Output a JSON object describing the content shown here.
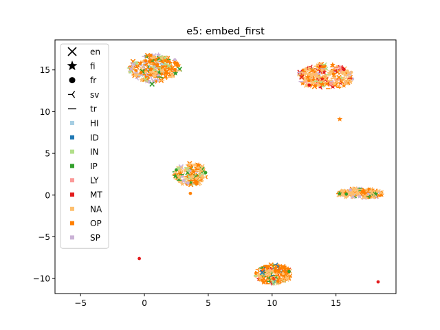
{
  "chart_data": {
    "type": "scatter",
    "title": "e5: embed_first",
    "xlabel": "",
    "ylabel": "",
    "xlim": [
      -7.0,
      19.7
    ],
    "ylim": [
      -11.8,
      18.6
    ],
    "xticks": [
      -5,
      0,
      5,
      10,
      15
    ],
    "yticks": [
      -10,
      -5,
      0,
      5,
      10,
      15
    ],
    "xtick_labels": [
      "−5",
      "0",
      "5",
      "10",
      "15"
    ],
    "ytick_labels": [
      "−10",
      "−5",
      "0",
      "5",
      "10",
      "15"
    ],
    "grid": false,
    "legend_position": "upper-left",
    "legend_markers": [
      {
        "name": "en",
        "marker": "x"
      },
      {
        "name": "fi",
        "marker": "star"
      },
      {
        "name": "fr",
        "marker": "circle"
      },
      {
        "name": "sv",
        "marker": "tri_left"
      },
      {
        "name": "tr",
        "marker": "hline"
      }
    ],
    "legend_classes": [
      {
        "name": "HI",
        "color": "#a6cee3"
      },
      {
        "name": "ID",
        "color": "#1f78b4"
      },
      {
        "name": "IN",
        "color": "#b2df8a"
      },
      {
        "name": "IP",
        "color": "#33a02c"
      },
      {
        "name": "LY",
        "color": "#fb9a99"
      },
      {
        "name": "MT",
        "color": "#e31a1c"
      },
      {
        "name": "NA",
        "color": "#fdbf6f"
      },
      {
        "name": "OP",
        "color": "#ff7f00"
      },
      {
        "name": "SP",
        "color": "#cab2d6"
      }
    ],
    "clusters": [
      {
        "cx": 0.8,
        "cy": 15.2,
        "rx": 2.0,
        "ry": 1.7,
        "n": 240,
        "mix": {
          "OP": 0.5,
          "NA": 0.18,
          "SP": 0.15,
          "IN": 0.07,
          "IP": 0.05,
          "HI": 0.05
        }
      },
      {
        "cx": 14.2,
        "cy": 14.2,
        "rx": 2.2,
        "ry": 1.5,
        "n": 240,
        "mix": {
          "NA": 0.45,
          "OP": 0.3,
          "MT": 0.12,
          "SP": 0.05,
          "IN": 0.04,
          "LY": 0.04
        }
      },
      {
        "cx": 3.6,
        "cy": 2.5,
        "rx": 1.3,
        "ry": 1.3,
        "n": 160,
        "mix": {
          "NA": 0.45,
          "OP": 0.3,
          "IN": 0.12,
          "IP": 0.08,
          "SP": 0.05
        }
      },
      {
        "cx": 16.9,
        "cy": 0.2,
        "rx": 1.8,
        "ry": 0.55,
        "n": 140,
        "mix": {
          "NA": 0.6,
          "OP": 0.28,
          "IP": 0.06,
          "SP": 0.06
        }
      },
      {
        "cx": 10.1,
        "cy": -9.5,
        "rx": 1.4,
        "ry": 1.2,
        "n": 180,
        "mix": {
          "OP": 0.48,
          "NA": 0.22,
          "IP": 0.12,
          "IN": 0.06,
          "ID": 0.06,
          "MT": 0.06
        }
      }
    ],
    "isolated_points": [
      {
        "x": -0.4,
        "y": -7.6,
        "class": "MT",
        "marker": "circle"
      },
      {
        "x": 18.3,
        "y": -10.4,
        "class": "MT",
        "marker": "circle"
      },
      {
        "x": 15.3,
        "y": 9.1,
        "class": "OP",
        "marker": "star"
      },
      {
        "x": 3.6,
        "y": 0.2,
        "class": "OP",
        "marker": "circle"
      },
      {
        "x": 0.6,
        "y": 13.3,
        "class": "IP",
        "marker": "x"
      }
    ]
  }
}
